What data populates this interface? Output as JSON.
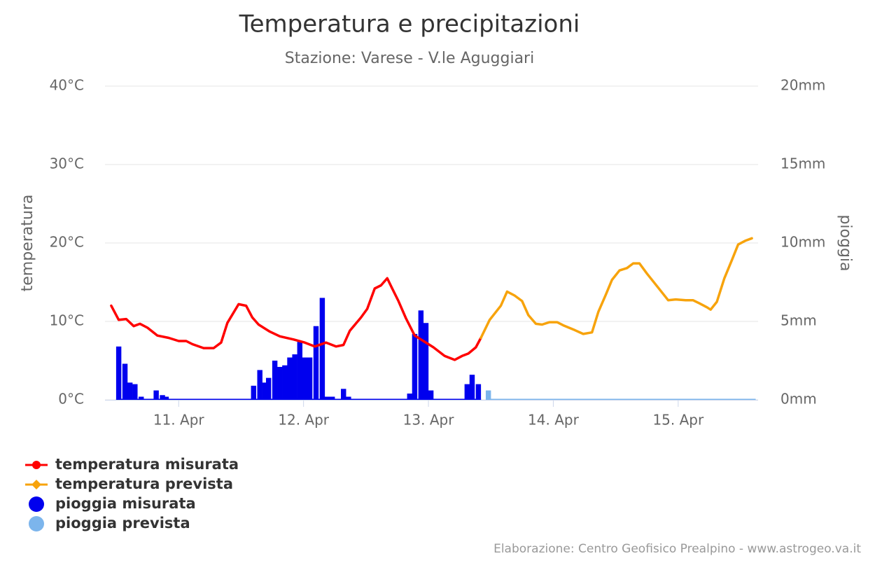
{
  "chart_data": {
    "type": "line",
    "title": "Temperatura e precipitazioni",
    "subtitle": "Stazione: Varese - V.le Aguggiari",
    "y_label": "temperatura",
    "y2_label": "pioggia",
    "credits": "Elaborazione: Centro Geofisico Prealpino - www.astrogeo.va.it",
    "xlim": [
      10.41,
      15.64
    ],
    "xticks": [
      {
        "value": 11,
        "label": "11. Apr"
      },
      {
        "value": 12,
        "label": "12. Apr"
      },
      {
        "value": 13,
        "label": "13. Apr"
      },
      {
        "value": 14,
        "label": "14. Apr"
      },
      {
        "value": 15,
        "label": "15. Apr"
      }
    ],
    "ylim": [
      0,
      40
    ],
    "yticks": [
      {
        "value": 0,
        "label": "0°C"
      },
      {
        "value": 10,
        "label": "10°C"
      },
      {
        "value": 20,
        "label": "20°C"
      },
      {
        "value": 30,
        "label": "30°C"
      },
      {
        "value": 40,
        "label": "40°C"
      }
    ],
    "y2lim": [
      0,
      20
    ],
    "y2ticks": [
      {
        "value": 0,
        "label": "0mm"
      },
      {
        "value": 5,
        "label": "5mm"
      },
      {
        "value": 10,
        "label": "10mm"
      },
      {
        "value": 15,
        "label": "15mm"
      },
      {
        "value": 20,
        "label": "20mm"
      }
    ],
    "grid": true,
    "series": [
      {
        "name": "temperatura misurata",
        "type": "line",
        "marker": "circle",
        "color": "#ff0000",
        "x": [
          10.46,
          10.52,
          10.58,
          10.64,
          10.69,
          10.75,
          10.83,
          10.92,
          11.0,
          11.06,
          11.11,
          11.2,
          11.28,
          11.34,
          11.39,
          11.48,
          11.54,
          11.59,
          11.64,
          11.73,
          11.81,
          11.92,
          12.01,
          12.09,
          12.18,
          12.26,
          12.32,
          12.37,
          12.46,
          12.51,
          12.57,
          12.62,
          12.67,
          12.71,
          12.76,
          12.82,
          12.89,
          12.96,
          13.04,
          13.13,
          13.21,
          13.27,
          13.32,
          13.38,
          13.42
        ],
        "values": [
          12.0,
          10.2,
          10.3,
          9.4,
          9.7,
          9.2,
          8.2,
          7.9,
          7.5,
          7.5,
          7.1,
          6.6,
          6.6,
          7.3,
          9.8,
          12.2,
          12.0,
          10.5,
          9.6,
          8.7,
          8.1,
          7.7,
          7.3,
          6.8,
          7.3,
          6.8,
          7.0,
          8.8,
          10.5,
          11.6,
          14.2,
          14.6,
          15.5,
          14.2,
          12.6,
          10.4,
          8.2,
          7.5,
          6.7,
          5.6,
          5.1,
          5.6,
          5.9,
          6.7,
          7.9
        ]
      },
      {
        "name": "temperatura prevista",
        "type": "line",
        "marker": "diamond",
        "color": "#f7a30c",
        "x": [
          13.42,
          13.49,
          13.58,
          13.63,
          13.69,
          13.75,
          13.8,
          13.86,
          13.91,
          13.97,
          14.03,
          14.08,
          14.17,
          14.24,
          14.31,
          14.36,
          14.42,
          14.47,
          14.53,
          14.59,
          14.64,
          14.69,
          14.75,
          14.84,
          14.92,
          14.98,
          15.06,
          15.12,
          15.17,
          15.23,
          15.26,
          15.31,
          15.37,
          15.43,
          15.48,
          15.54,
          15.59
        ],
        "values": [
          7.9,
          10.2,
          12.0,
          13.8,
          13.3,
          12.6,
          10.8,
          9.7,
          9.6,
          9.9,
          9.9,
          9.5,
          8.9,
          8.4,
          8.6,
          11.2,
          13.4,
          15.3,
          16.5,
          16.8,
          17.4,
          17.4,
          16.1,
          14.3,
          12.7,
          12.8,
          12.7,
          12.7,
          12.3,
          11.8,
          11.5,
          12.5,
          15.5,
          17.8,
          19.8,
          20.3,
          20.6
        ]
      },
      {
        "name": "pioggia misurata",
        "type": "column",
        "axis": "y2",
        "color": "#0000ee",
        "x": [
          10.52,
          10.57,
          10.61,
          10.65,
          10.7,
          10.82,
          10.87,
          10.9,
          11.6,
          11.65,
          11.69,
          11.72,
          11.77,
          11.81,
          11.85,
          11.89,
          11.93,
          11.97,
          12.01,
          12.05,
          12.1,
          12.15,
          12.19,
          12.23,
          12.32,
          12.36,
          12.85,
          12.89,
          12.94,
          12.98,
          13.02,
          13.31,
          13.35,
          13.4
        ],
        "values": [
          3.4,
          2.3,
          1.1,
          1.0,
          0.2,
          0.6,
          0.3,
          0.2,
          0.9,
          1.9,
          1.1,
          1.4,
          2.5,
          2.1,
          2.2,
          2.7,
          2.9,
          3.7,
          2.7,
          2.7,
          4.7,
          6.5,
          0.2,
          0.2,
          0.7,
          0.2,
          0.4,
          4.2,
          5.7,
          4.9,
          0.6,
          1.0,
          1.6,
          1.0
        ]
      },
      {
        "name": "pioggia prevista",
        "type": "column",
        "axis": "y2",
        "color": "#7cb5ec",
        "x": [
          13.48,
          13.6,
          13.8,
          14.0,
          14.2,
          14.4,
          14.6,
          14.8,
          15.0,
          15.2,
          15.4,
          15.6
        ],
        "values": [
          0.6,
          0,
          0,
          0,
          0,
          0,
          0,
          0,
          0,
          0,
          0,
          0
        ]
      }
    ]
  }
}
